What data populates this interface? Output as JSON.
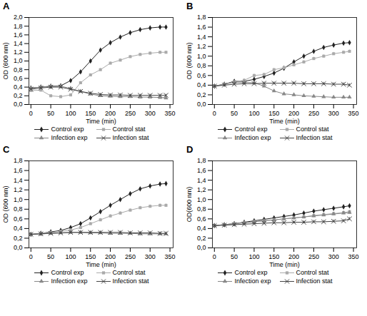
{
  "chart_data": [
    {
      "type": "line",
      "title": "A",
      "xlabel": "Time (min)",
      "ylabel": "OD (600 nm)",
      "x": [
        0,
        25,
        50,
        75,
        100,
        125,
        150,
        175,
        200,
        225,
        250,
        275,
        300,
        325,
        340
      ],
      "series": [
        {
          "name": "Control exp",
          "color": "#222222",
          "marker": "diamond",
          "values": [
            0.38,
            0.4,
            0.42,
            0.43,
            0.55,
            0.75,
            1.0,
            1.25,
            1.42,
            1.55,
            1.65,
            1.72,
            1.76,
            1.78,
            1.78
          ],
          "errors": [
            0.03,
            0.03,
            0.03,
            0.03,
            0.03,
            0.03,
            0.03,
            0.03,
            0.03,
            0.03,
            0.03,
            0.03,
            0.03,
            0.03,
            0.03
          ]
        },
        {
          "name": "Control stat",
          "color": "#aaaaaa",
          "marker": "square",
          "values": [
            0.32,
            0.33,
            0.2,
            0.18,
            0.22,
            0.5,
            0.68,
            0.8,
            0.95,
            1.02,
            1.1,
            1.15,
            1.18,
            1.2,
            1.2
          ],
          "errors": [
            0.03,
            0.03,
            0.03,
            0.03,
            0.03,
            0.03,
            0.03,
            0.03,
            0.03,
            0.03,
            0.03,
            0.03,
            0.03,
            0.03,
            0.03
          ]
        },
        {
          "name": "Infection exp",
          "color": "#888888",
          "marker": "triangle",
          "values": [
            0.38,
            0.4,
            0.42,
            0.42,
            0.37,
            0.3,
            0.24,
            0.2,
            0.19,
            0.18,
            0.18,
            0.17,
            0.17,
            0.16,
            0.15
          ],
          "errors": [
            0.03,
            0.03,
            0.03,
            0.03,
            0.03,
            0.03,
            0.03,
            0.03,
            0.03,
            0.03,
            0.03,
            0.03,
            0.03,
            0.03,
            0.03
          ]
        },
        {
          "name": "Infection stat",
          "color": "#444444",
          "marker": "x",
          "values": [
            0.35,
            0.38,
            0.4,
            0.4,
            0.35,
            0.3,
            0.26,
            0.23,
            0.22,
            0.22,
            0.21,
            0.21,
            0.21,
            0.21,
            0.21
          ],
          "errors": [
            0.03,
            0.03,
            0.03,
            0.03,
            0.03,
            0.03,
            0.03,
            0.03,
            0.03,
            0.03,
            0.03,
            0.03,
            0.03,
            0.03,
            0.03
          ]
        }
      ],
      "xlim": [
        -5,
        358
      ],
      "xticks": [
        0,
        50,
        100,
        150,
        200,
        250,
        300,
        350
      ],
      "ylim": [
        0,
        2.0
      ],
      "yticks": [
        {
          "value": 0,
          "label": "0,0"
        },
        {
          "value": 0.2,
          "label": "0,2"
        },
        {
          "value": 0.4,
          "label": "0,4"
        },
        {
          "value": 0.6,
          "label": "0,6"
        },
        {
          "value": 0.8,
          "label": "0,8"
        },
        {
          "value": 1.0,
          "label": "1,0"
        },
        {
          "value": 1.2,
          "label": "1,2"
        },
        {
          "value": 1.4,
          "label": "1,4"
        },
        {
          "value": 1.6,
          "label": "1,6"
        },
        {
          "value": 1.8,
          "label": "1,8"
        },
        {
          "value": 2.0,
          "label": "2,0"
        }
      ],
      "legend": "bottom"
    },
    {
      "type": "line",
      "title": "B",
      "xlabel": "Time (min)",
      "ylabel": "OD (600 nm)",
      "x": [
        0,
        25,
        50,
        75,
        100,
        125,
        150,
        175,
        200,
        225,
        250,
        275,
        300,
        325,
        340
      ],
      "series": [
        {
          "name": "Control exp",
          "color": "#222222",
          "marker": "diamond",
          "values": [
            0.38,
            0.42,
            0.48,
            0.48,
            0.52,
            0.58,
            0.65,
            0.75,
            0.88,
            1.0,
            1.1,
            1.18,
            1.23,
            1.27,
            1.28
          ],
          "errors": [
            0.03,
            0.03,
            0.03,
            0.03,
            0.03,
            0.03,
            0.03,
            0.03,
            0.03,
            0.03,
            0.03,
            0.03,
            0.03,
            0.03,
            0.03
          ]
        },
        {
          "name": "Control stat",
          "color": "#aaaaaa",
          "marker": "square",
          "values": [
            0.38,
            0.42,
            0.47,
            0.5,
            0.6,
            0.62,
            0.72,
            0.76,
            0.82,
            0.88,
            0.95,
            1.0,
            1.05,
            1.08,
            1.1
          ],
          "errors": [
            0.03,
            0.03,
            0.03,
            0.03,
            0.03,
            0.03,
            0.03,
            0.03,
            0.03,
            0.03,
            0.03,
            0.03,
            0.03,
            0.03,
            0.03
          ]
        },
        {
          "name": "Infection exp",
          "color": "#888888",
          "marker": "triangle",
          "values": [
            0.38,
            0.42,
            0.46,
            0.46,
            0.45,
            0.38,
            0.28,
            0.22,
            0.2,
            0.18,
            0.17,
            0.16,
            0.15,
            0.15,
            0.15
          ],
          "errors": [
            0.03,
            0.03,
            0.03,
            0.03,
            0.03,
            0.03,
            0.03,
            0.03,
            0.03,
            0.03,
            0.03,
            0.03,
            0.03,
            0.03,
            0.03
          ]
        },
        {
          "name": "Infection stat",
          "color": "#444444",
          "marker": "x",
          "values": [
            0.38,
            0.4,
            0.42,
            0.43,
            0.43,
            0.44,
            0.44,
            0.44,
            0.44,
            0.43,
            0.43,
            0.43,
            0.42,
            0.42,
            0.4
          ],
          "errors": [
            0.03,
            0.03,
            0.03,
            0.03,
            0.03,
            0.03,
            0.03,
            0.03,
            0.03,
            0.03,
            0.03,
            0.03,
            0.03,
            0.03,
            0.03
          ]
        }
      ],
      "xlim": [
        -5,
        358
      ],
      "xticks": [
        0,
        50,
        100,
        150,
        200,
        250,
        300,
        350
      ],
      "ylim": [
        0,
        1.8
      ],
      "yticks": [
        {
          "value": 0,
          "label": "0,0"
        },
        {
          "value": 0.2,
          "label": "0,2"
        },
        {
          "value": 0.4,
          "label": "0,4"
        },
        {
          "value": 0.6,
          "label": "0,6"
        },
        {
          "value": 0.8,
          "label": "0,8"
        },
        {
          "value": 1.0,
          "label": "1,0"
        },
        {
          "value": 1.2,
          "label": "1,2"
        },
        {
          "value": 1.4,
          "label": "1,4"
        },
        {
          "value": 1.6,
          "label": "1,6"
        },
        {
          "value": 1.8,
          "label": "1,8"
        }
      ],
      "legend": "bottom"
    },
    {
      "type": "line",
      "title": "C",
      "xlabel": "Time (min)",
      "ylabel": "OD (600 nm)",
      "x": [
        0,
        25,
        50,
        75,
        100,
        125,
        150,
        175,
        200,
        225,
        250,
        275,
        300,
        325,
        340
      ],
      "series": [
        {
          "name": "Control exp",
          "color": "#222222",
          "marker": "diamond",
          "values": [
            0.28,
            0.3,
            0.33,
            0.36,
            0.42,
            0.5,
            0.62,
            0.75,
            0.88,
            1.0,
            1.12,
            1.22,
            1.28,
            1.32,
            1.33
          ],
          "errors": [
            0.03,
            0.03,
            0.03,
            0.03,
            0.03,
            0.03,
            0.03,
            0.03,
            0.03,
            0.03,
            0.03,
            0.03,
            0.03,
            0.03,
            0.03
          ]
        },
        {
          "name": "Control stat",
          "color": "#aaaaaa",
          "marker": "square",
          "values": [
            0.28,
            0.3,
            0.32,
            0.34,
            0.37,
            0.42,
            0.5,
            0.58,
            0.66,
            0.72,
            0.78,
            0.83,
            0.86,
            0.88,
            0.88
          ],
          "errors": [
            0.03,
            0.03,
            0.03,
            0.03,
            0.03,
            0.03,
            0.03,
            0.03,
            0.03,
            0.03,
            0.03,
            0.03,
            0.03,
            0.03,
            0.03
          ]
        },
        {
          "name": "Infection exp",
          "color": "#888888",
          "marker": "triangle",
          "values": [
            0.28,
            0.29,
            0.3,
            0.31,
            0.32,
            0.32,
            0.31,
            0.31,
            0.3,
            0.3,
            0.3,
            0.29,
            0.29,
            0.29,
            0.29
          ],
          "errors": [
            0.03,
            0.03,
            0.03,
            0.03,
            0.03,
            0.03,
            0.03,
            0.03,
            0.03,
            0.03,
            0.03,
            0.03,
            0.03,
            0.03,
            0.03
          ]
        },
        {
          "name": "Infection stat",
          "color": "#444444",
          "marker": "x",
          "values": [
            0.28,
            0.29,
            0.3,
            0.31,
            0.32,
            0.32,
            0.32,
            0.32,
            0.32,
            0.32,
            0.31,
            0.31,
            0.31,
            0.3,
            0.3
          ],
          "errors": [
            0.03,
            0.03,
            0.03,
            0.03,
            0.03,
            0.03,
            0.03,
            0.03,
            0.03,
            0.03,
            0.03,
            0.03,
            0.03,
            0.03,
            0.03
          ]
        }
      ],
      "xlim": [
        -5,
        358
      ],
      "xticks": [
        0,
        50,
        100,
        150,
        200,
        250,
        300,
        350
      ],
      "ylim": [
        0,
        1.8
      ],
      "yticks": [
        {
          "value": 0,
          "label": "0,0"
        },
        {
          "value": 0.2,
          "label": "0,2"
        },
        {
          "value": 0.4,
          "label": "0,4"
        },
        {
          "value": 0.6,
          "label": "0,6"
        },
        {
          "value": 0.8,
          "label": "0,8"
        },
        {
          "value": 1.0,
          "label": "1,0"
        },
        {
          "value": 1.2,
          "label": "1,2"
        },
        {
          "value": 1.4,
          "label": "1,4"
        },
        {
          "value": 1.6,
          "label": "1,6"
        },
        {
          "value": 1.8,
          "label": "1,8"
        }
      ],
      "legend": "bottom"
    },
    {
      "type": "line",
      "title": "D",
      "xlabel": "Time (min)",
      "ylabel": "OD(600 nm)",
      "x": [
        0,
        25,
        50,
        75,
        100,
        125,
        150,
        175,
        200,
        225,
        250,
        275,
        300,
        325,
        340
      ],
      "series": [
        {
          "name": "Control exp",
          "color": "#222222",
          "marker": "diamond",
          "values": [
            0.46,
            0.48,
            0.5,
            0.53,
            0.56,
            0.59,
            0.62,
            0.65,
            0.68,
            0.72,
            0.76,
            0.79,
            0.82,
            0.85,
            0.87
          ],
          "errors": [
            0.03,
            0.03,
            0.03,
            0.03,
            0.03,
            0.03,
            0.03,
            0.03,
            0.03,
            0.03,
            0.03,
            0.03,
            0.03,
            0.03,
            0.03
          ]
        },
        {
          "name": "Control stat",
          "color": "#aaaaaa",
          "marker": "square",
          "values": [
            0.46,
            0.48,
            0.5,
            0.52,
            0.54,
            0.56,
            0.58,
            0.6,
            0.62,
            0.64,
            0.67,
            0.69,
            0.71,
            0.73,
            0.75
          ],
          "errors": [
            0.03,
            0.03,
            0.03,
            0.03,
            0.03,
            0.03,
            0.03,
            0.03,
            0.03,
            0.03,
            0.03,
            0.03,
            0.03,
            0.03,
            0.03
          ]
        },
        {
          "name": "Infection exp",
          "color": "#888888",
          "marker": "triangle",
          "values": [
            0.46,
            0.48,
            0.5,
            0.52,
            0.54,
            0.56,
            0.58,
            0.6,
            0.62,
            0.64,
            0.66,
            0.68,
            0.7,
            0.72,
            0.73
          ],
          "errors": [
            0.03,
            0.03,
            0.03,
            0.03,
            0.03,
            0.03,
            0.03,
            0.03,
            0.03,
            0.03,
            0.03,
            0.03,
            0.03,
            0.03,
            0.03
          ]
        },
        {
          "name": "Infection stat",
          "color": "#444444",
          "marker": "x",
          "values": [
            0.46,
            0.47,
            0.48,
            0.49,
            0.5,
            0.51,
            0.52,
            0.52,
            0.53,
            0.53,
            0.54,
            0.54,
            0.55,
            0.56,
            0.6
          ],
          "errors": [
            0.03,
            0.03,
            0.03,
            0.03,
            0.03,
            0.03,
            0.03,
            0.03,
            0.03,
            0.03,
            0.03,
            0.03,
            0.03,
            0.03,
            0.03
          ]
        }
      ],
      "xlim": [
        -5,
        358
      ],
      "xticks": [
        0,
        50,
        100,
        150,
        200,
        250,
        300,
        350
      ],
      "ylim": [
        0,
        1.8
      ],
      "yticks": [
        {
          "value": 0,
          "label": "0,0"
        },
        {
          "value": 0.2,
          "label": "0,2"
        },
        {
          "value": 0.4,
          "label": "0,4"
        },
        {
          "value": 0.6,
          "label": "0,6"
        },
        {
          "value": 0.8,
          "label": "0,8"
        },
        {
          "value": 1.0,
          "label": "1,0"
        },
        {
          "value": 1.2,
          "label": "1,2"
        },
        {
          "value": 1.4,
          "label": "1,4"
        },
        {
          "value": 1.6,
          "label": "1,6"
        },
        {
          "value": 1.8,
          "label": "1,8"
        }
      ],
      "legend": "bottom"
    }
  ]
}
